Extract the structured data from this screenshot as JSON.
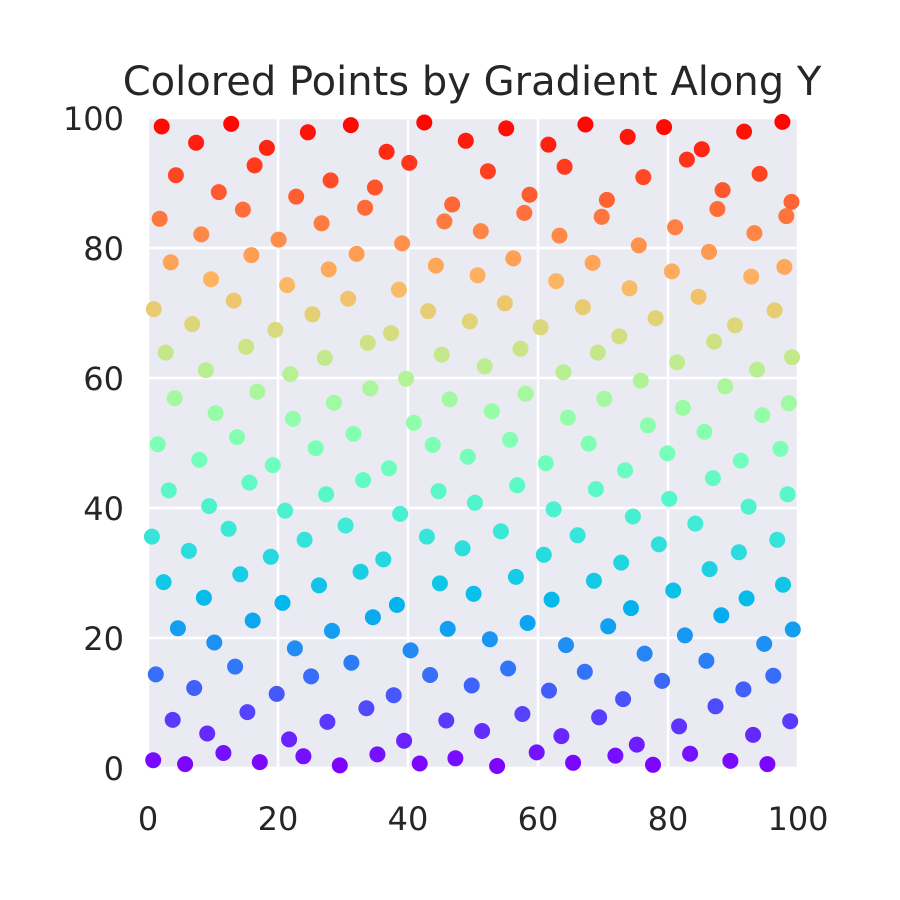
{
  "chart_data": {
    "type": "scatter",
    "title": "Colored Points by Gradient Along Y",
    "xlabel": "",
    "ylabel": "",
    "xlim": [
      0,
      100
    ],
    "ylim": [
      0,
      100
    ],
    "x_ticks": [
      "0",
      "20",
      "40",
      "60",
      "80",
      "100"
    ],
    "y_ticks": [
      "0",
      "20",
      "40",
      "60",
      "80",
      "100"
    ],
    "grid": true,
    "legend": "none",
    "colormap": "rainbow",
    "color_by": "y",
    "background_color": "#eaeaf2",
    "grid_color": "#ffffff",
    "series": [
      {
        "points": [
          [
            2.1,
            98.7
          ],
          [
            7.4,
            96.2
          ],
          [
            12.8,
            99.1
          ],
          [
            18.3,
            95.4
          ],
          [
            24.6,
            97.8
          ],
          [
            31.2,
            98.9
          ],
          [
            36.7,
            94.8
          ],
          [
            42.5,
            99.3
          ],
          [
            48.9,
            96.5
          ],
          [
            55.1,
            98.4
          ],
          [
            61.6,
            95.9
          ],
          [
            67.3,
            99.0
          ],
          [
            73.8,
            97.1
          ],
          [
            79.4,
            98.6
          ],
          [
            85.2,
            95.2
          ],
          [
            91.7,
            97.9
          ],
          [
            97.6,
            99.4
          ],
          [
            4.3,
            91.2
          ],
          [
            10.9,
            88.6
          ],
          [
            16.4,
            92.7
          ],
          [
            22.8,
            87.9
          ],
          [
            28.1,
            90.4
          ],
          [
            34.9,
            89.3
          ],
          [
            40.2,
            93.1
          ],
          [
            46.8,
            86.7
          ],
          [
            52.3,
            91.8
          ],
          [
            58.7,
            88.2
          ],
          [
            64.1,
            92.5
          ],
          [
            70.6,
            87.4
          ],
          [
            76.2,
            90.9
          ],
          [
            82.9,
            93.6
          ],
          [
            88.4,
            88.9
          ],
          [
            94.1,
            91.4
          ],
          [
            99.0,
            87.1
          ],
          [
            1.8,
            84.5
          ],
          [
            8.2,
            82.1
          ],
          [
            14.6,
            85.9
          ],
          [
            20.1,
            81.3
          ],
          [
            26.7,
            83.8
          ],
          [
            33.4,
            86.2
          ],
          [
            39.1,
            80.7
          ],
          [
            45.6,
            84.1
          ],
          [
            51.2,
            82.6
          ],
          [
            57.9,
            85.4
          ],
          [
            63.3,
            81.9
          ],
          [
            69.8,
            84.8
          ],
          [
            75.5,
            80.4
          ],
          [
            81.1,
            83.2
          ],
          [
            87.6,
            86.0
          ],
          [
            93.3,
            82.3
          ],
          [
            98.2,
            84.9
          ],
          [
            3.5,
            77.8
          ],
          [
            9.7,
            75.2
          ],
          [
            15.9,
            78.9
          ],
          [
            21.4,
            74.3
          ],
          [
            27.8,
            76.7
          ],
          [
            32.1,
            79.1
          ],
          [
            38.6,
            73.6
          ],
          [
            44.3,
            77.3
          ],
          [
            50.7,
            75.8
          ],
          [
            56.2,
            78.4
          ],
          [
            62.8,
            74.9
          ],
          [
            68.4,
            77.7
          ],
          [
            74.1,
            73.8
          ],
          [
            80.6,
            76.4
          ],
          [
            86.3,
            79.4
          ],
          [
            92.8,
            75.6
          ],
          [
            97.9,
            77.1
          ],
          [
            0.9,
            70.6
          ],
          [
            6.8,
            68.3
          ],
          [
            13.2,
            71.9
          ],
          [
            19.6,
            67.4
          ],
          [
            25.3,
            69.8
          ],
          [
            30.8,
            72.2
          ],
          [
            37.4,
            66.9
          ],
          [
            43.1,
            70.3
          ],
          [
            49.5,
            68.7
          ],
          [
            54.9,
            71.5
          ],
          [
            60.4,
            67.8
          ],
          [
            66.9,
            70.9
          ],
          [
            72.5,
            66.4
          ],
          [
            78.1,
            69.2
          ],
          [
            84.7,
            72.5
          ],
          [
            90.3,
            68.1
          ],
          [
            96.4,
            70.4
          ],
          [
            2.7,
            63.9
          ],
          [
            8.9,
            61.2
          ],
          [
            15.1,
            64.8
          ],
          [
            21.9,
            60.6
          ],
          [
            27.2,
            63.1
          ],
          [
            33.8,
            65.4
          ],
          [
            39.7,
            59.9
          ],
          [
            45.2,
            63.6
          ],
          [
            51.8,
            61.8
          ],
          [
            57.3,
            64.5
          ],
          [
            63.9,
            60.9
          ],
          [
            69.2,
            63.9
          ],
          [
            75.8,
            59.6
          ],
          [
            81.4,
            62.4
          ],
          [
            87.1,
            65.6
          ],
          [
            93.7,
            61.3
          ],
          [
            99.1,
            63.2
          ],
          [
            4.1,
            56.9
          ],
          [
            10.4,
            54.6
          ],
          [
            16.8,
            57.9
          ],
          [
            22.3,
            53.7
          ],
          [
            28.6,
            56.2
          ],
          [
            34.2,
            58.4
          ],
          [
            40.9,
            53.1
          ],
          [
            46.4,
            56.7
          ],
          [
            52.9,
            54.9
          ],
          [
            58.1,
            57.6
          ],
          [
            64.6,
            53.9
          ],
          [
            70.2,
            56.8
          ],
          [
            76.9,
            52.7
          ],
          [
            82.3,
            55.4
          ],
          [
            88.8,
            58.7
          ],
          [
            94.5,
            54.3
          ],
          [
            98.6,
            56.1
          ],
          [
            1.5,
            49.8
          ],
          [
            7.9,
            47.4
          ],
          [
            13.7,
            50.9
          ],
          [
            19.2,
            46.6
          ],
          [
            25.8,
            49.2
          ],
          [
            31.6,
            51.4
          ],
          [
            37.1,
            46.1
          ],
          [
            43.8,
            49.7
          ],
          [
            49.2,
            47.9
          ],
          [
            55.7,
            50.5
          ],
          [
            61.2,
            46.9
          ],
          [
            67.8,
            49.9
          ],
          [
            73.4,
            45.8
          ],
          [
            79.9,
            48.4
          ],
          [
            85.6,
            51.7
          ],
          [
            91.2,
            47.3
          ],
          [
            97.3,
            49.1
          ],
          [
            3.2,
            42.7
          ],
          [
            9.4,
            40.3
          ],
          [
            15.6,
            43.9
          ],
          [
            21.1,
            39.6
          ],
          [
            27.4,
            42.1
          ],
          [
            33.1,
            44.3
          ],
          [
            38.8,
            39.1
          ],
          [
            44.7,
            42.6
          ],
          [
            50.3,
            40.8
          ],
          [
            56.8,
            43.5
          ],
          [
            62.4,
            39.8
          ],
          [
            68.9,
            42.9
          ],
          [
            74.6,
            38.7
          ],
          [
            80.2,
            41.4
          ],
          [
            86.9,
            44.6
          ],
          [
            92.4,
            40.2
          ],
          [
            98.4,
            42.1
          ],
          [
            0.6,
            35.6
          ],
          [
            6.3,
            33.4
          ],
          [
            12.4,
            36.8
          ],
          [
            18.9,
            32.5
          ],
          [
            24.1,
            35.1
          ],
          [
            30.4,
            37.3
          ],
          [
            36.2,
            32.1
          ],
          [
            42.9,
            35.6
          ],
          [
            48.4,
            33.8
          ],
          [
            54.3,
            36.4
          ],
          [
            60.9,
            32.8
          ],
          [
            66.1,
            35.8
          ],
          [
            72.8,
            31.6
          ],
          [
            78.6,
            34.4
          ],
          [
            84.2,
            37.6
          ],
          [
            90.9,
            33.2
          ],
          [
            96.8,
            35.1
          ],
          [
            2.4,
            28.6
          ],
          [
            8.6,
            26.2
          ],
          [
            14.2,
            29.8
          ],
          [
            20.7,
            25.4
          ],
          [
            26.3,
            28.1
          ],
          [
            32.7,
            30.2
          ],
          [
            38.3,
            25.1
          ],
          [
            44.9,
            28.4
          ],
          [
            50.1,
            26.8
          ],
          [
            56.6,
            29.4
          ],
          [
            62.1,
            25.9
          ],
          [
            68.6,
            28.8
          ],
          [
            74.3,
            24.6
          ],
          [
            80.8,
            27.3
          ],
          [
            86.4,
            30.6
          ],
          [
            92.1,
            26.1
          ],
          [
            97.7,
            28.2
          ],
          [
            4.6,
            21.5
          ],
          [
            10.2,
            19.3
          ],
          [
            16.1,
            22.7
          ],
          [
            22.6,
            18.4
          ],
          [
            28.3,
            21.1
          ],
          [
            34.6,
            23.2
          ],
          [
            40.4,
            18.1
          ],
          [
            46.1,
            21.4
          ],
          [
            52.6,
            19.8
          ],
          [
            58.4,
            22.3
          ],
          [
            64.3,
            18.9
          ],
          [
            70.8,
            21.8
          ],
          [
            76.4,
            17.6
          ],
          [
            82.6,
            20.4
          ],
          [
            88.2,
            23.5
          ],
          [
            94.8,
            19.1
          ],
          [
            99.2,
            21.3
          ],
          [
            1.2,
            14.4
          ],
          [
            7.1,
            12.3
          ],
          [
            13.4,
            15.6
          ],
          [
            19.8,
            11.4
          ],
          [
            25.1,
            14.1
          ],
          [
            31.3,
            16.2
          ],
          [
            37.8,
            11.2
          ],
          [
            43.4,
            14.3
          ],
          [
            49.8,
            12.7
          ],
          [
            55.4,
            15.3
          ],
          [
            61.7,
            11.9
          ],
          [
            67.2,
            14.8
          ],
          [
            73.1,
            10.6
          ],
          [
            79.1,
            13.4
          ],
          [
            85.9,
            16.5
          ],
          [
            91.6,
            12.1
          ],
          [
            96.2,
            14.2
          ],
          [
            3.8,
            7.4
          ],
          [
            9.1,
            5.3
          ],
          [
            15.3,
            8.6
          ],
          [
            21.7,
            4.4
          ],
          [
            27.6,
            7.1
          ],
          [
            33.6,
            9.2
          ],
          [
            39.4,
            4.2
          ],
          [
            45.9,
            7.3
          ],
          [
            51.4,
            5.7
          ],
          [
            57.6,
            8.3
          ],
          [
            63.6,
            4.9
          ],
          [
            69.4,
            7.8
          ],
          [
            75.2,
            3.6
          ],
          [
            81.7,
            6.4
          ],
          [
            87.3,
            9.5
          ],
          [
            93.1,
            5.1
          ],
          [
            98.8,
            7.2
          ],
          [
            0.8,
            1.2
          ],
          [
            5.7,
            0.6
          ],
          [
            11.6,
            2.3
          ],
          [
            17.2,
            0.9
          ],
          [
            23.9,
            1.8
          ],
          [
            29.5,
            0.4
          ],
          [
            35.3,
            2.1
          ],
          [
            41.8,
            0.7
          ],
          [
            47.3,
            1.5
          ],
          [
            53.7,
            0.3
          ],
          [
            59.8,
            2.4
          ],
          [
            65.4,
            0.8
          ],
          [
            71.9,
            1.9
          ],
          [
            77.7,
            0.5
          ],
          [
            83.4,
            2.2
          ],
          [
            89.6,
            1.1
          ],
          [
            95.3,
            0.6
          ]
        ]
      }
    ]
  }
}
